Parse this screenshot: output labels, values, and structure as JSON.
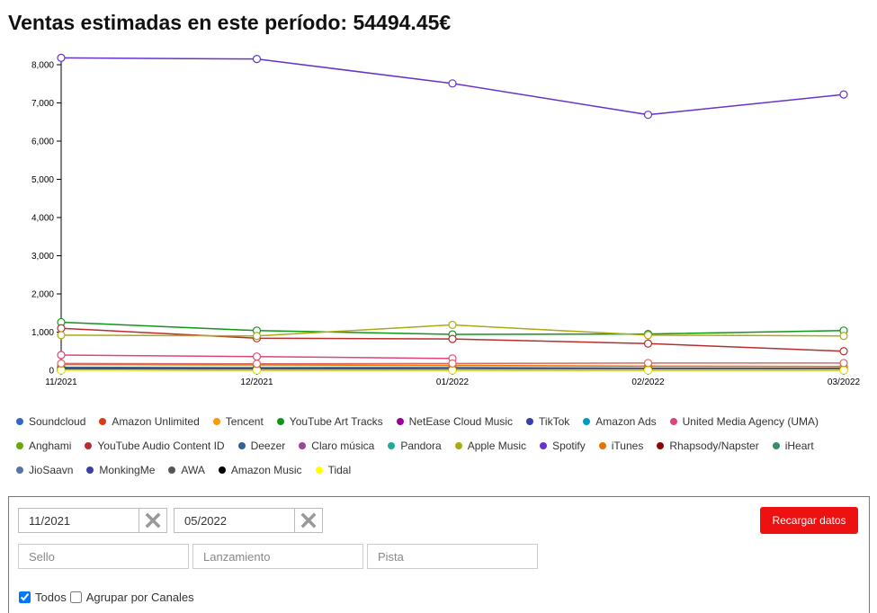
{
  "header": {
    "title": "Ventas estimadas en este período: 54494.45€"
  },
  "chart_data": {
    "type": "line",
    "title": "",
    "xlabel": "",
    "ylabel": "",
    "categories": [
      "11/2021",
      "12/2021",
      "01/2022",
      "02/2022",
      "03/2022"
    ],
    "ylim": [
      0,
      8000
    ],
    "yticks": [
      0,
      1000,
      2000,
      3000,
      4000,
      5000,
      6000,
      7000,
      8000
    ],
    "ytick_labels": [
      "0",
      "1,000",
      "2,000",
      "3,000",
      "4,000",
      "5,000",
      "6,000",
      "7,000",
      "8,000"
    ],
    "series": [
      {
        "name": "Soundcloud",
        "color": "#3366cc",
        "values": [
          15,
          12,
          10,
          8,
          8
        ]
      },
      {
        "name": "Amazon Unlimited",
        "color": "#dc3912",
        "values": [
          60,
          55,
          70,
          40,
          35
        ]
      },
      {
        "name": "Tencent",
        "color": "#ff9900",
        "values": [
          10,
          8,
          10,
          6,
          5
        ]
      },
      {
        "name": "YouTube Art Tracks",
        "color": "#109618",
        "values": [
          1260,
          1040,
          940,
          950,
          1040
        ]
      },
      {
        "name": "NetEase Cloud Music",
        "color": "#990099",
        "values": [
          5,
          4,
          5,
          3,
          3
        ]
      },
      {
        "name": "TikTok",
        "color": "#3b3eac",
        "values": [
          40,
          35,
          30,
          25,
          20
        ]
      },
      {
        "name": "Amazon Ads",
        "color": "#0099c6",
        "values": [
          20,
          18,
          15,
          12,
          10
        ]
      },
      {
        "name": "United Media Agency (UMA)",
        "color": "#dd4477",
        "values": [
          400,
          360,
          310,
          null,
          null
        ]
      },
      {
        "name": "Anghami",
        "color": "#66aa00",
        "values": [
          5,
          5,
          5,
          4,
          4
        ]
      },
      {
        "name": "YouTube Audio Content ID",
        "color": "#b82e2e",
        "values": [
          1100,
          840,
          820,
          700,
          500
        ]
      },
      {
        "name": "Deezer",
        "color": "#316395",
        "values": [
          80,
          70,
          75,
          60,
          55
        ]
      },
      {
        "name": "Claro música",
        "color": "#994499",
        "values": [
          5,
          4,
          4,
          3,
          3
        ]
      },
      {
        "name": "Pandora",
        "color": "#22aa99",
        "values": [
          10,
          9,
          8,
          7,
          6
        ]
      },
      {
        "name": "Apple Music",
        "color": "#aaaa11",
        "values": [
          920,
          900,
          1190,
          920,
          900
        ]
      },
      {
        "name": "Spotify",
        "color": "#6633cc",
        "values": [
          8180,
          8150,
          7510,
          6690,
          7220
        ]
      },
      {
        "name": "iTunes",
        "color": "#e67300",
        "values": [
          150,
          140,
          130,
          110,
          100
        ]
      },
      {
        "name": "Rhapsody/Napster",
        "color": "#8b0707",
        "values": [
          5,
          4,
          4,
          3,
          3
        ]
      },
      {
        "name": "iHeart",
        "color": "#329262",
        "values": [
          5,
          4,
          4,
          3,
          3
        ]
      },
      {
        "name": "JioSaavn",
        "color": "#5574a6",
        "values": [
          5,
          4,
          4,
          3,
          3
        ]
      },
      {
        "name": "MonkingMe",
        "color": "#3b3eac",
        "values": [
          3,
          3,
          3,
          2,
          2
        ]
      },
      {
        "name": "AWA",
        "color": "#555555",
        "values": [
          40,
          35,
          30,
          25,
          20
        ]
      },
      {
        "name": "Amazon Music",
        "color": "#000000",
        "values": [
          10,
          10,
          10,
          null,
          null
        ]
      },
      {
        "name": "Tidal",
        "color": "#ffff00",
        "values": [
          3,
          3,
          3,
          2,
          2
        ]
      },
      {
        "name": "",
        "color": "#d46a6a",
        "values": [
          180,
          170,
          180,
          190,
          190
        ]
      }
    ]
  },
  "filters": {
    "date_from": "11/2021",
    "date_to": "05/2022",
    "sello_placeholder": "Sello",
    "lanzamiento_placeholder": "Lanzamiento",
    "pista_placeholder": "Pista",
    "reload_label": "Recargar datos",
    "todos_label": "Todos",
    "todos_checked": true,
    "agrupar_label": "Agrupar por Canales",
    "agrupar_checked": false
  }
}
